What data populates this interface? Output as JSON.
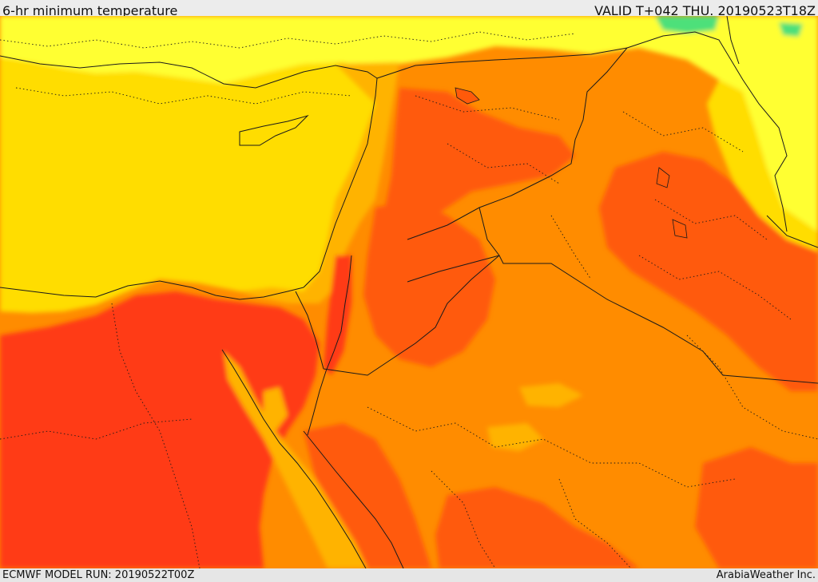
{
  "header": {
    "title": "6-hr minimum temperature",
    "valid": "VALID T+042 THU. 20190523T18Z"
  },
  "footer": {
    "model_run": "ECMWF MODEL RUN: 20190522T00Z",
    "credit": "ArabiaWeather Inc."
  },
  "map": {
    "palette": {
      "green": "#4ee07a",
      "light_yellow": "#ffff33",
      "yellow": "#ffdd00",
      "amber": "#ffb300",
      "orange": "#ff8c00",
      "dark_orange": "#ff5a0a",
      "red": "#ff3a12",
      "border": "#1a1a1a"
    }
  }
}
